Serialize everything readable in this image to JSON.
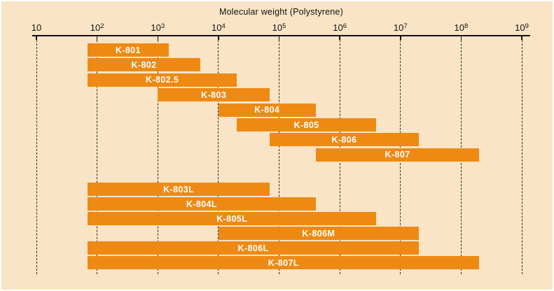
{
  "chart_data": {
    "type": "bar",
    "subtype": "horizontal-range-bars",
    "title": "Molecular weight (Polystyrene)",
    "x_axis": {
      "scale": "log10",
      "min": 10,
      "max": 1000000000,
      "tick_label_base": "10",
      "tick_exponents": [
        1,
        2,
        3,
        4,
        5,
        6,
        7,
        8,
        9
      ],
      "grid": "vertical-dashed",
      "position": "top"
    },
    "ylabel": "",
    "xlabel": "",
    "legend": null,
    "groups": [
      {
        "name": "standard-columns",
        "rows": [
          {
            "label": "K-801",
            "range": [
              70,
              1500
            ]
          },
          {
            "label": "K-802",
            "range": [
              70,
              5000
            ]
          },
          {
            "label": "K-802.5",
            "range": [
              70,
              20000
            ]
          },
          {
            "label": "K-803",
            "range": [
              1000,
              70000
            ]
          },
          {
            "label": "K-804",
            "range": [
              10000,
              400000
            ]
          },
          {
            "label": "K-805",
            "range": [
              20000,
              4000000
            ]
          },
          {
            "label": "K-806",
            "range": [
              70000,
              20000000
            ]
          },
          {
            "label": "K-807",
            "range": [
              400000,
              200000000
            ]
          }
        ]
      },
      {
        "name": "linear-columns",
        "rows": [
          {
            "label": "K-803L",
            "range": [
              70,
              70000
            ]
          },
          {
            "label": "K-804L",
            "range": [
              70,
              400000
            ]
          },
          {
            "label": "K-805L",
            "range": [
              70,
              4000000
            ]
          },
          {
            "label": "K-806M",
            "range": [
              10000,
              20000000
            ]
          },
          {
            "label": "K-806L",
            "range": [
              70,
              20000000
            ]
          },
          {
            "label": "K-807L",
            "range": [
              70,
              200000000
            ]
          }
        ]
      }
    ],
    "colors": {
      "background": "#FAE4C6",
      "bar": "#EE8A14",
      "bar_label": "#FFFFFF",
      "axis": "#111111",
      "gridline": "#2B2B2B",
      "border": "#FFFFFF"
    }
  }
}
